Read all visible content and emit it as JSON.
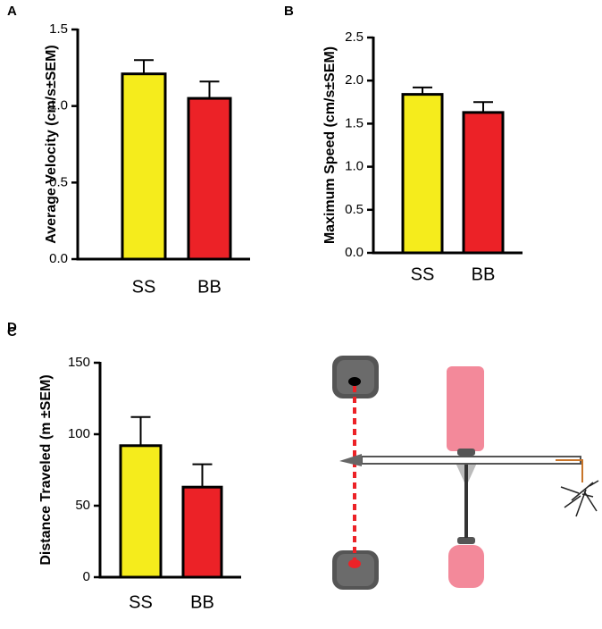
{
  "chart_data": [
    {
      "type": "bar",
      "panel": "A",
      "y_label": "Average Velocity (cm/s±SEM)",
      "categories": [
        "SS",
        "BB"
      ],
      "values": [
        1.21,
        1.05
      ],
      "errors": [
        0.09,
        0.11
      ],
      "colors": [
        "#f5ec1c",
        "#ec2227"
      ],
      "ylim": [
        0,
        1.5
      ],
      "yticks": [
        {
          "value": 0,
          "label": "0.0"
        },
        {
          "value": 0.5,
          "label": "0.5"
        },
        {
          "value": 1,
          "label": "1.0"
        },
        {
          "value": 1.5,
          "label": "1.5"
        }
      ]
    },
    {
      "type": "bar",
      "panel": "B",
      "y_label": "Maximum Speed (cm/s±SEM)",
      "categories": [
        "SS",
        "BB"
      ],
      "values": [
        1.84,
        1.63
      ],
      "errors": [
        0.08,
        0.12
      ],
      "colors": [
        "#f5ec1c",
        "#ec2227"
      ],
      "ylim": [
        0,
        2.5
      ],
      "yticks": [
        {
          "value": 0,
          "label": "0.0"
        },
        {
          "value": 0.5,
          "label": "0.5"
        },
        {
          "value": 1,
          "label": "1.0"
        },
        {
          "value": 1.5,
          "label": "1.5"
        },
        {
          "value": 2,
          "label": "2.0"
        },
        {
          "value": 2.5,
          "label": "2.5"
        }
      ]
    },
    {
      "type": "bar",
      "panel": "C",
      "y_label": "Distance Traveled (m ±SEM)",
      "categories": [
        "SS",
        "BB"
      ],
      "values": [
        92,
        63
      ],
      "errors": [
        20,
        16
      ],
      "colors": [
        "#f5ec1c",
        "#ec2227"
      ],
      "ylim": [
        0,
        150
      ],
      "yticks": [
        0,
        50,
        100,
        150
      ]
    }
  ],
  "diagram": {
    "panel": "D"
  }
}
